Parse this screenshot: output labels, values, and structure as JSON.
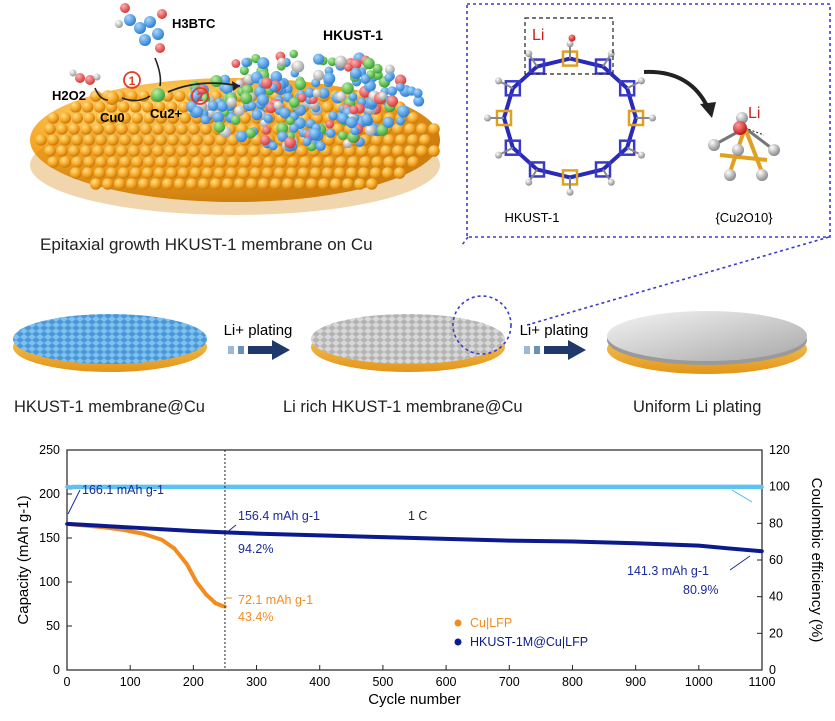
{
  "top_panel": {
    "caption": "Epitaxial growth HKUST-1 membrane on Cu",
    "labels": {
      "h3btc": "H3BTC",
      "hkust": "HKUST-1",
      "h2o2": "H2O2",
      "cu0": "Cu0",
      "cu2": "Cu2+",
      "step1": "1",
      "step2": "2"
    }
  },
  "inset": {
    "li_left": "Li",
    "li_right": "Li",
    "label_left": "HKUST-1",
    "label_right": "{Cu2O10}"
  },
  "middle_panel": {
    "arrow1": "Li+ plating",
    "arrow2": "Li+ plating",
    "disk1": "HKUST-1 membrane@Cu",
    "disk2": "Li rich HKUST-1 membrane@Cu",
    "disk3": "Uniform Li plating"
  },
  "colors": {
    "cu": "#f6a623",
    "hkust_blue": "#4fa3e0",
    "cu_lfp": "#f28c1e",
    "hkust_lfp": "#0b1a8c",
    "ce": "#5ec1f2",
    "inset_border": "#3b3bd0"
  },
  "chart_data": {
    "type": "line",
    "xlabel": "Cycle number",
    "ylabel": "Capacity (mAh g-1)",
    "y2label": "Coulombic efficiency (%)",
    "xlim": [
      0,
      1100
    ],
    "ylim": [
      0,
      250
    ],
    "y2lim": [
      0,
      120
    ],
    "xticks": [
      0,
      100,
      200,
      300,
      400,
      500,
      600,
      700,
      800,
      900,
      1000,
      1100
    ],
    "yticks": [
      0,
      50,
      100,
      150,
      200,
      250
    ],
    "y2ticks": [
      0,
      20,
      40,
      60,
      80,
      100,
      120
    ],
    "legend_position": "bottom-right",
    "series": [
      {
        "name": "Cu|LFP",
        "axis": "left",
        "x": [
          0,
          30,
          60,
          90,
          120,
          150,
          170,
          190,
          205,
          220,
          235,
          245,
          250
        ],
        "values": [
          166,
          164,
          162,
          159,
          155,
          148,
          138,
          120,
          100,
          86,
          76,
          73,
          72
        ]
      },
      {
        "name": "HKUST-1M@Cu|LFP",
        "axis": "left",
        "x": [
          0,
          50,
          100,
          150,
          200,
          250,
          300,
          400,
          500,
          600,
          700,
          800,
          900,
          1000,
          1050,
          1100
        ],
        "values": [
          166,
          164,
          162,
          160,
          158,
          156.4,
          155,
          153,
          151,
          149,
          147,
          146,
          144,
          141.3,
          138,
          135
        ]
      },
      {
        "name": "",
        "axis": "right",
        "x": [
          0,
          5,
          10,
          100,
          200,
          300,
          400,
          500,
          600,
          700,
          800,
          900,
          1000,
          1100
        ],
        "values": [
          100,
          99.5,
          99.8,
          99.9,
          99.9,
          99.9,
          99.9,
          99.9,
          99.9,
          99.9,
          99.9,
          99.9,
          99.9,
          99.9
        ]
      }
    ],
    "annotations": {
      "a1": "166.1 mAh g-1",
      "a2": "156.4 mAh g-1",
      "a3": "94.2%",
      "a4": "1 C",
      "a5": "72.1 mAh g-1",
      "a6": "43.4%",
      "a7": "141.3 mAh g-1",
      "a8": "80.9%"
    },
    "vline_x": 250,
    "legend": [
      "Cu|LFP",
      "HKUST-1M@Cu|LFP"
    ]
  }
}
